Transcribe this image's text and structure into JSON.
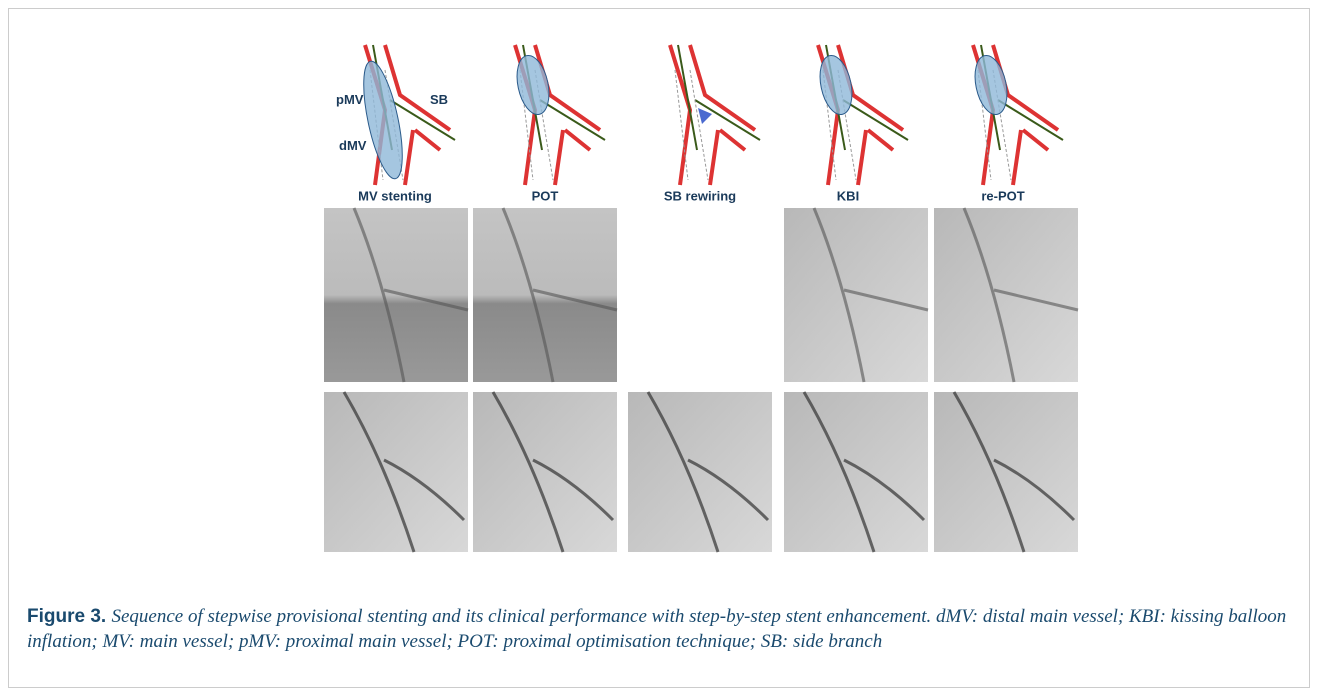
{
  "figure": {
    "panels": [
      "MV stenting",
      "POT",
      "SB rewiring",
      "KBI",
      "re-POT"
    ],
    "annotations": {
      "pmv": "pMV",
      "sb": "SB",
      "dmv": "dMV"
    },
    "caption": {
      "label": "Figure 3.",
      "text": "Sequence of stepwise provisional stenting and its clinical performance with step-by-step stent enhancement. dMV: distal main vessel; KBI: kissing balloon inflation; MV: main vessel; pMV: proximal main vessel; POT: proximal optimisation technique; SB: side branch"
    }
  }
}
